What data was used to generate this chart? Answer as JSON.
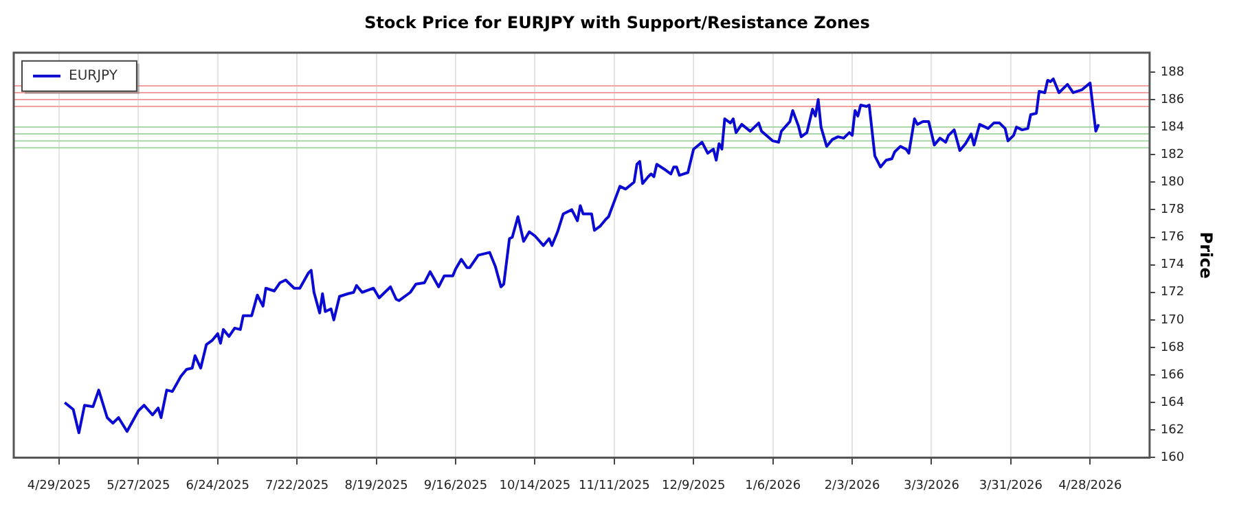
{
  "chart_data": {
    "type": "line",
    "title": "Stock Price for EURJPY with Support/Resistance Zones",
    "ylabel": "Price",
    "x": [
      "2025-05-01",
      "2025-05-04",
      "2025-05-06",
      "2025-05-08",
      "2025-05-11",
      "2025-05-13",
      "2025-05-16",
      "2025-05-18",
      "2025-05-20",
      "2025-05-23",
      "2025-05-27",
      "2025-05-29",
      "2025-06-01",
      "2025-06-03",
      "2025-06-04",
      "2025-06-06",
      "2025-06-08",
      "2025-06-11",
      "2025-06-13",
      "2025-06-15",
      "2025-06-16",
      "2025-06-18",
      "2025-06-20",
      "2025-06-22",
      "2025-06-24",
      "2025-06-25",
      "2025-06-26",
      "2025-06-28",
      "2025-06-30",
      "2025-07-02",
      "2025-07-03",
      "2025-07-06",
      "2025-07-08",
      "2025-07-10",
      "2025-07-11",
      "2025-07-14",
      "2025-07-16",
      "2025-07-18",
      "2025-07-21",
      "2025-07-23",
      "2025-07-26",
      "2025-07-27",
      "2025-07-28",
      "2025-07-30",
      "2025-07-31",
      "2025-08-01",
      "2025-08-03",
      "2025-08-04",
      "2025-08-06",
      "2025-08-09",
      "2025-08-11",
      "2025-08-12",
      "2025-08-14",
      "2025-08-18",
      "2025-08-20",
      "2025-08-22",
      "2025-08-24",
      "2025-08-26",
      "2025-08-27",
      "2025-08-31",
      "2025-09-02",
      "2025-09-05",
      "2025-09-07",
      "2025-09-10",
      "2025-09-12",
      "2025-09-15",
      "2025-09-16",
      "2025-09-18",
      "2025-09-20",
      "2025-09-21",
      "2025-09-24",
      "2025-09-28",
      "2025-09-30",
      "2025-10-02",
      "2025-10-03",
      "2025-10-05",
      "2025-10-06",
      "2025-10-08",
      "2025-10-10",
      "2025-10-12",
      "2025-10-14",
      "2025-10-17",
      "2025-10-19",
      "2025-10-20",
      "2025-10-22",
      "2025-10-24",
      "2025-10-27",
      "2025-10-29",
      "2025-10-30",
      "2025-10-31",
      "2025-11-03",
      "2025-11-04",
      "2025-11-06",
      "2025-11-08",
      "2025-11-09",
      "2025-11-11",
      "2025-11-13",
      "2025-11-15",
      "2025-11-18",
      "2025-11-19",
      "2025-11-20",
      "2025-11-21",
      "2025-11-23",
      "2025-11-24",
      "2025-11-25",
      "2025-11-26",
      "2025-11-29",
      "2025-12-01",
      "2025-12-02",
      "2025-12-03",
      "2025-12-04",
      "2025-12-07",
      "2025-12-09",
      "2025-12-12",
      "2025-12-14",
      "2025-12-16",
      "2025-12-17",
      "2025-12-18",
      "2025-12-19",
      "2025-12-20",
      "2025-12-22",
      "2025-12-23",
      "2025-12-24",
      "2025-12-26",
      "2025-12-29",
      "2026-01-01",
      "2026-01-02",
      "2026-01-06",
      "2026-01-08",
      "2026-01-09",
      "2026-01-12",
      "2026-01-13",
      "2026-01-15",
      "2026-01-16",
      "2026-01-18",
      "2026-01-20",
      "2026-01-21",
      "2026-01-22",
      "2026-01-23",
      "2026-01-25",
      "2026-01-27",
      "2026-01-29",
      "2026-01-31",
      "2026-02-02",
      "2026-02-03",
      "2026-02-04",
      "2026-02-05",
      "2026-02-06",
      "2026-02-08",
      "2026-02-09",
      "2026-02-11",
      "2026-02-13",
      "2026-02-15",
      "2026-02-17",
      "2026-02-18",
      "2026-02-20",
      "2026-02-22",
      "2026-02-23",
      "2026-02-25",
      "2026-02-26",
      "2026-02-28",
      "2026-03-02",
      "2026-03-04",
      "2026-03-06",
      "2026-03-08",
      "2026-03-09",
      "2026-03-11",
      "2026-03-13",
      "2026-03-15",
      "2026-03-17",
      "2026-03-18",
      "2026-03-20",
      "2026-03-23",
      "2026-03-25",
      "2026-03-27",
      "2026-03-29",
      "2026-03-30",
      "2026-04-01",
      "2026-04-02",
      "2026-04-04",
      "2026-04-06",
      "2026-04-07",
      "2026-04-09",
      "2026-04-10",
      "2026-04-12",
      "2026-04-13",
      "2026-04-14",
      "2026-04-15",
      "2026-04-17",
      "2026-04-20",
      "2026-04-22",
      "2026-04-25",
      "2026-04-28",
      "2026-04-30",
      "2026-05-01"
    ],
    "series": [
      {
        "name": "EURJPY",
        "color": "#0a0ad2",
        "values": [
          164.0,
          163.5,
          161.8,
          163.8,
          163.7,
          164.9,
          162.9,
          162.5,
          162.9,
          161.9,
          163.4,
          163.8,
          163.1,
          163.6,
          162.9,
          164.9,
          164.8,
          165.9,
          166.4,
          166.5,
          167.4,
          166.5,
          168.2,
          168.5,
          169.0,
          168.3,
          169.3,
          168.8,
          169.4,
          169.3,
          170.3,
          170.3,
          171.8,
          171.0,
          172.3,
          172.1,
          172.7,
          172.9,
          172.3,
          172.3,
          173.4,
          173.6,
          172.0,
          170.5,
          171.9,
          170.6,
          170.8,
          170.0,
          171.7,
          171.9,
          172.0,
          172.5,
          172.0,
          172.3,
          171.6,
          172.0,
          172.4,
          171.5,
          171.4,
          172.0,
          172.6,
          172.7,
          173.5,
          172.4,
          173.2,
          173.2,
          173.7,
          174.4,
          173.8,
          173.8,
          174.7,
          174.9,
          173.9,
          172.4,
          172.6,
          175.9,
          176.0,
          177.5,
          175.7,
          176.4,
          176.1,
          175.4,
          175.9,
          175.4,
          176.4,
          177.7,
          178.0,
          177.2,
          178.3,
          177.7,
          177.7,
          176.5,
          176.8,
          177.3,
          177.5,
          178.6,
          179.7,
          179.5,
          180.0,
          181.3,
          181.5,
          179.9,
          180.4,
          180.6,
          180.4,
          181.3,
          180.9,
          180.6,
          181.1,
          181.1,
          180.5,
          180.7,
          182.4,
          182.9,
          182.1,
          182.4,
          181.6,
          182.8,
          182.4,
          184.6,
          184.3,
          184.6,
          183.6,
          184.2,
          183.7,
          184.3,
          183.7,
          183.0,
          182.9,
          183.7,
          184.4,
          185.2,
          184.1,
          183.3,
          183.6,
          185.3,
          184.8,
          186.0,
          184.0,
          182.6,
          183.1,
          183.3,
          183.2,
          183.6,
          183.4,
          185.2,
          184.8,
          185.6,
          185.5,
          185.6,
          181.9,
          181.1,
          181.6,
          181.7,
          182.2,
          182.6,
          182.4,
          182.1,
          184.6,
          184.2,
          184.4,
          184.4,
          182.7,
          183.2,
          182.9,
          183.4,
          183.8,
          182.3,
          182.8,
          183.5,
          182.7,
          184.2,
          183.9,
          184.3,
          184.3,
          183.9,
          183.0,
          183.4,
          184.0,
          183.8,
          183.9,
          184.9,
          185.0,
          186.6,
          186.5,
          187.4,
          187.3,
          187.5,
          186.5,
          187.1,
          186.5,
          186.7,
          187.2,
          183.7,
          184.2
        ]
      }
    ],
    "xlim": [
      "2025-04-13",
      "2026-05-19"
    ],
    "xticks": [
      {
        "value": "2025-04-29",
        "label": "4/29/2025"
      },
      {
        "value": "2025-05-27",
        "label": "5/27/2025"
      },
      {
        "value": "2025-06-24",
        "label": "6/24/2025"
      },
      {
        "value": "2025-07-22",
        "label": "7/22/2025"
      },
      {
        "value": "2025-08-19",
        "label": "8/19/2025"
      },
      {
        "value": "2025-09-16",
        "label": "9/16/2025"
      },
      {
        "value": "2025-10-14",
        "label": "10/14/2025"
      },
      {
        "value": "2025-11-11",
        "label": "11/11/2025"
      },
      {
        "value": "2025-12-09",
        "label": "12/9/2025"
      },
      {
        "value": "2026-01-06",
        "label": "1/6/2026"
      },
      {
        "value": "2026-02-03",
        "label": "2/3/2026"
      },
      {
        "value": "2026-03-03",
        "label": "3/3/2026"
      },
      {
        "value": "2026-03-31",
        "label": "3/31/2026"
      },
      {
        "value": "2026-04-28",
        "label": "4/28/2026"
      }
    ],
    "ylim": [
      160,
      189.4
    ],
    "yticks": [
      160,
      162,
      164,
      166,
      168,
      170,
      172,
      174,
      176,
      178,
      180,
      182,
      184,
      186,
      188
    ],
    "ref_lines": [
      {
        "axis": "y",
        "value": 187.0,
        "color": "#f2a0a0"
      },
      {
        "axis": "y",
        "value": 186.5,
        "color": "#f2a0a0"
      },
      {
        "axis": "y",
        "value": 186.0,
        "color": "#f2a0a0"
      },
      {
        "axis": "y",
        "value": 185.5,
        "color": "#f2a0a0"
      },
      {
        "axis": "y",
        "value": 184.0,
        "color": "#a8d8a8"
      },
      {
        "axis": "y",
        "value": 183.5,
        "color": "#a8d8a8"
      },
      {
        "axis": "y",
        "value": 183.0,
        "color": "#a8d8a8"
      },
      {
        "axis": "y",
        "value": 182.5,
        "color": "#a8d8a8"
      }
    ],
    "grid": "x",
    "legend": "top left",
    "marker": "none",
    "line_style": "solid"
  }
}
